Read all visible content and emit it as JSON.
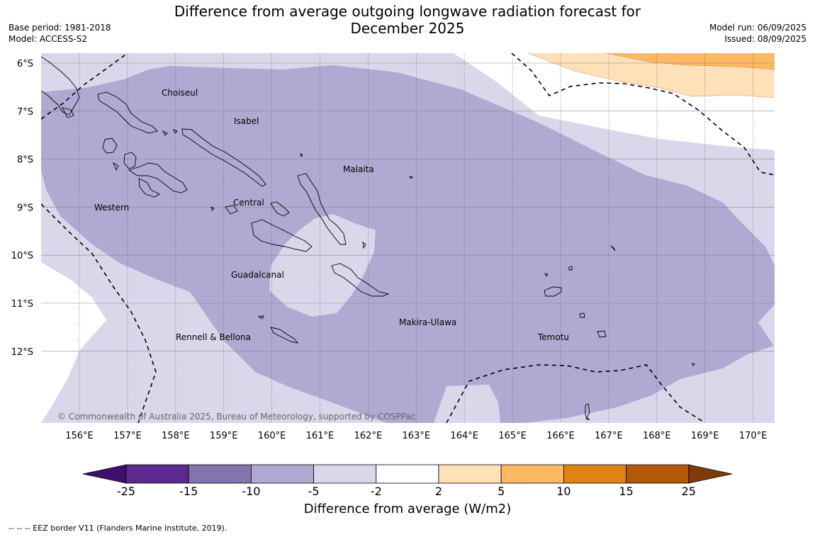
{
  "title_line1": "Difference from average outgoing longwave radiation forecast for",
  "title_line2": "December 2025",
  "base_period": "Base period: 1981-2018",
  "model": "Model: ACCESS-S2",
  "model_run": "Model run: 06/09/2025",
  "issued": "Issued: 08/09/2025",
  "copyright": "© Commonwealth of Australia 2025, Bureau of Meteorology, supported by COSPPac",
  "lat_labels": [
    "6°S",
    "7°S",
    "8°S",
    "9°S",
    "10°S",
    "11°S",
    "12°S"
  ],
  "lon_labels": [
    "156°E",
    "157°E",
    "158°E",
    "159°E",
    "160°E",
    "161°E",
    "162°E",
    "163°E",
    "164°E",
    "165°E",
    "166°E",
    "167°E",
    "168°E",
    "169°E",
    "170°E"
  ],
  "regions": [
    "Choiseul",
    "Isabel",
    "Malaita",
    "Western",
    "Central",
    "Guadalcanal",
    "Rennell & Bellona",
    "Makira-Ulawa",
    "Temotu"
  ],
  "colorbar": {
    "ticks": [
      "-25",
      "-15",
      "-10",
      "-5",
      "-2",
      "2",
      "5",
      "10",
      "15",
      "25"
    ],
    "colors": [
      "#3f0f6b",
      "#5a2a8f",
      "#8473ad",
      "#b0aad3",
      "#d9d8eb",
      "#ffffff",
      "#fee1b8",
      "#fdb863",
      "#e08214",
      "#b35806",
      "#7f3b08"
    ],
    "title": "Difference from average (W/m2)"
  },
  "footnote": "--  --  -- EEZ border V11 (Flanders Marine Institute, 2019)."
}
